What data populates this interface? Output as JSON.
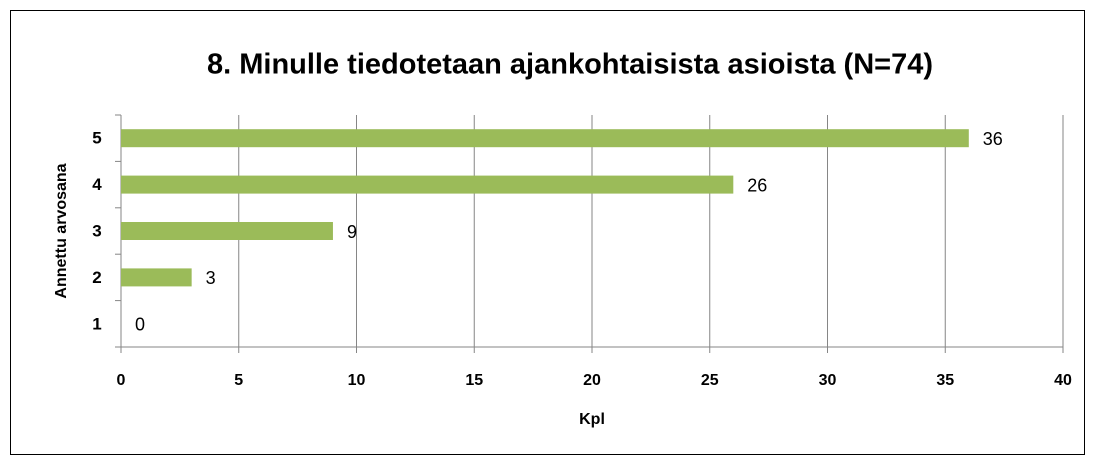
{
  "chart_data": {
    "type": "bar",
    "orientation": "horizontal",
    "title": "8. Minulle tiedotetaan ajankohtaisista asioista (N=74)",
    "xlabel": "Kpl",
    "ylabel": "Annettu arvosana",
    "categories": [
      "1",
      "2",
      "3",
      "4",
      "5"
    ],
    "values": [
      0,
      3,
      9,
      26,
      36
    ],
    "color": "#9bbb59",
    "xlim": [
      0,
      40
    ],
    "xticks": [
      0,
      5,
      10,
      15,
      20,
      25,
      30,
      35,
      40
    ],
    "grid": true
  }
}
